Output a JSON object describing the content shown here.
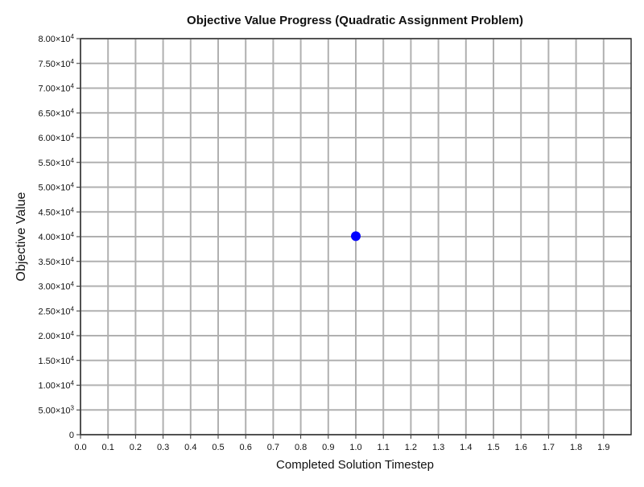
{
  "chart_data": {
    "type": "scatter",
    "title": "Objective Value Progress (Quadratic Assignment Problem)",
    "xlabel": "Completed Solution Timestep",
    "ylabel": "Objective Value",
    "xlim": [
      0,
      2.0
    ],
    "ylim": [
      0,
      80000
    ],
    "x_ticks": [
      0.0,
      0.1,
      0.2,
      0.3,
      0.4,
      0.5,
      0.6,
      0.7,
      0.8,
      0.9,
      1.0,
      1.1,
      1.2,
      1.3,
      1.4,
      1.5,
      1.6,
      1.7,
      1.8,
      1.9
    ],
    "x_tick_labels": [
      "0.0",
      "0.1",
      "0.2",
      "0.3",
      "0.4",
      "0.5",
      "0.6",
      "0.7",
      "0.8",
      "0.9",
      "1.0",
      "1.1",
      "1.2",
      "1.3",
      "1.4",
      "1.5",
      "1.6",
      "1.7",
      "1.8",
      "1.9"
    ],
    "y_ticks": [
      {
        "value": 0,
        "mantissa": "0",
        "exp": ""
      },
      {
        "value": 5000,
        "mantissa": "5.00×10",
        "exp": "3"
      },
      {
        "value": 10000,
        "mantissa": "1.00×10",
        "exp": "4"
      },
      {
        "value": 15000,
        "mantissa": "1.50×10",
        "exp": "4"
      },
      {
        "value": 20000,
        "mantissa": "2.00×10",
        "exp": "4"
      },
      {
        "value": 25000,
        "mantissa": "2.50×10",
        "exp": "4"
      },
      {
        "value": 30000,
        "mantissa": "3.00×10",
        "exp": "4"
      },
      {
        "value": 35000,
        "mantissa": "3.50×10",
        "exp": "4"
      },
      {
        "value": 40000,
        "mantissa": "4.00×10",
        "exp": "4"
      },
      {
        "value": 45000,
        "mantissa": "4.50×10",
        "exp": "4"
      },
      {
        "value": 50000,
        "mantissa": "5.00×10",
        "exp": "4"
      },
      {
        "value": 55000,
        "mantissa": "5.50×10",
        "exp": "4"
      },
      {
        "value": 60000,
        "mantissa": "6.00×10",
        "exp": "4"
      },
      {
        "value": 65000,
        "mantissa": "6.50×10",
        "exp": "4"
      },
      {
        "value": 70000,
        "mantissa": "7.00×10",
        "exp": "4"
      },
      {
        "value": 75000,
        "mantissa": "7.50×10",
        "exp": "4"
      },
      {
        "value": 80000,
        "mantissa": "8.00×10",
        "exp": "4"
      }
    ],
    "grid": true,
    "series": [
      {
        "color": "#0000ff",
        "points": [
          {
            "x": 1.0,
            "y": 40100
          }
        ]
      }
    ],
    "colors": {
      "grid": "#b0b0b0",
      "frame": "#333333",
      "point": "#0000ff"
    }
  }
}
